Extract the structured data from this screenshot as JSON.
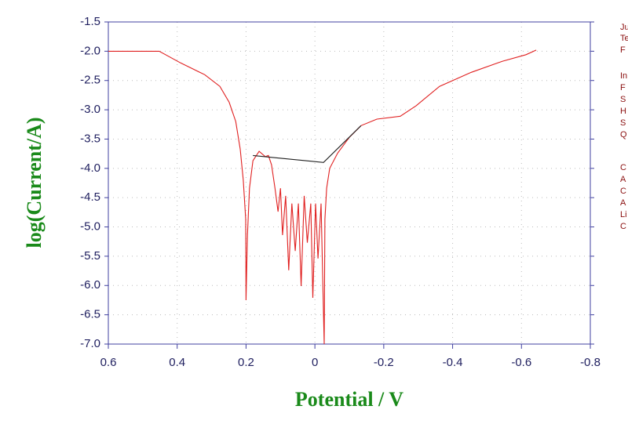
{
  "chart_data": {
    "type": "line",
    "xlabel": "Potential / V",
    "ylabel": "log(Current/A)",
    "xlim": [
      0.6,
      -0.8
    ],
    "ylim": [
      -7.0,
      -1.5
    ],
    "xticks": [
      0.6,
      0.4,
      0.2,
      0,
      -0.2,
      -0.4,
      -0.6,
      -0.8
    ],
    "yticks": [
      -1.5,
      {
        "value": -2.0,
        "label": "-2.0"
      },
      -2.5,
      {
        "value": -3.0,
        "label": "-3.0"
      },
      -3.5,
      {
        "value": -4.0,
        "label": "-4.0"
      },
      -4.5,
      {
        "value": -5.0,
        "label": "-5.0"
      },
      -5.5,
      {
        "value": -6.0,
        "label": "-6.0"
      },
      -6.5,
      {
        "value": -7.0,
        "label": "-7.0"
      }
    ],
    "grid": true,
    "series": [
      {
        "color": "#e02020",
        "x": [
          0.6,
          0.452,
          0.39,
          0.32,
          0.276,
          0.249,
          0.23,
          0.217,
          0.208,
          0.201,
          0.2,
          0.196,
          0.19,
          0.18,
          0.162,
          0.144,
          0.135,
          0.126,
          0.116,
          0.107,
          0.1,
          0.094,
          0.085,
          0.076,
          0.067,
          0.057,
          0.048,
          0.04,
          0.031,
          0.022,
          0.012,
          0.006,
          -0.002,
          -0.009,
          -0.018,
          -0.025,
          -0.027,
          -0.029,
          -0.034,
          -0.043,
          -0.066,
          -0.1,
          -0.134,
          -0.18,
          -0.248,
          -0.294,
          -0.362,
          -0.454,
          -0.545,
          -0.613,
          -0.643
        ],
        "values": [
          -2.0,
          -2.0,
          -2.2,
          -2.4,
          -2.6,
          -2.87,
          -3.2,
          -3.67,
          -4.2,
          -4.87,
          -6.25,
          -5.15,
          -4.34,
          -3.87,
          -3.71,
          -3.8,
          -3.78,
          -3.94,
          -4.34,
          -4.74,
          -4.34,
          -5.14,
          -4.47,
          -5.74,
          -4.6,
          -5.41,
          -4.6,
          -6.01,
          -4.47,
          -5.27,
          -4.6,
          -6.21,
          -4.6,
          -5.54,
          -4.6,
          -6.48,
          -7.0,
          -4.87,
          -4.34,
          -4.0,
          -3.74,
          -3.47,
          -3.27,
          -3.16,
          -3.11,
          -2.93,
          -2.6,
          -2.36,
          -2.17,
          -2.06,
          -1.98
        ]
      },
      {
        "color": "#202020",
        "x": [
          0.18,
          -0.025,
          -0.134
        ],
        "values": [
          -3.78,
          -3.9,
          -3.27
        ]
      }
    ],
    "side_text": [
      "Ju",
      "Te",
      "F",
      "In",
      "F",
      "S",
      "H",
      "S",
      "Q",
      "C",
      "A",
      "C",
      "A",
      "Li",
      "C"
    ]
  }
}
